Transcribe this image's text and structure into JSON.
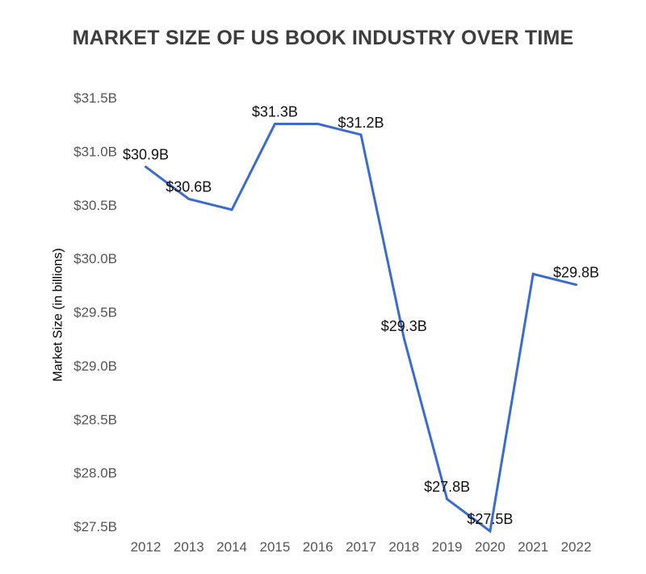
{
  "page": {
    "background": "#ffffff"
  },
  "chart_data": {
    "type": "line",
    "title": "MARKET SIZE OF US BOOK INDUSTRY OVER TIME",
    "ylabel": "Market Size (in billions)",
    "xlabel": "",
    "categories": [
      "2012",
      "2013",
      "2014",
      "2015",
      "2016",
      "2017",
      "2018",
      "2019",
      "2020",
      "2021",
      "2022"
    ],
    "values": [
      30.9,
      30.6,
      30.5,
      31.3,
      31.3,
      31.2,
      29.3,
      27.8,
      27.5,
      29.9,
      29.8
    ],
    "point_labels": [
      "$30.9B",
      "$30.6B",
      "",
      "$31.3B",
      "",
      "$31.2B",
      "$29.3B",
      "$27.8B",
      "$27.5B",
      "",
      "$29.8B"
    ],
    "y_ticks": [
      {
        "label": "$31.5B",
        "value": 31.5
      },
      {
        "label": "$31.0B",
        "value": 31.0
      },
      {
        "label": "$30.5B",
        "value": 30.5
      },
      {
        "label": "$30.0B",
        "value": 30.0
      },
      {
        "label": "$29.5B",
        "value": 29.5
      },
      {
        "label": "$29.0B",
        "value": 29.0
      },
      {
        "label": "$28.5B",
        "value": 28.5
      },
      {
        "label": "$28.0B",
        "value": 28.0
      },
      {
        "label": "$27.5B",
        "value": 27.5
      }
    ],
    "ylim": [
      27.4,
      31.6
    ],
    "grid": false,
    "legend": "none",
    "line_color": "#3a6bce",
    "line_width": 3,
    "title_color": "#3d3d3d",
    "axis_label_color": "#555555",
    "data_label_color": "#111111"
  }
}
